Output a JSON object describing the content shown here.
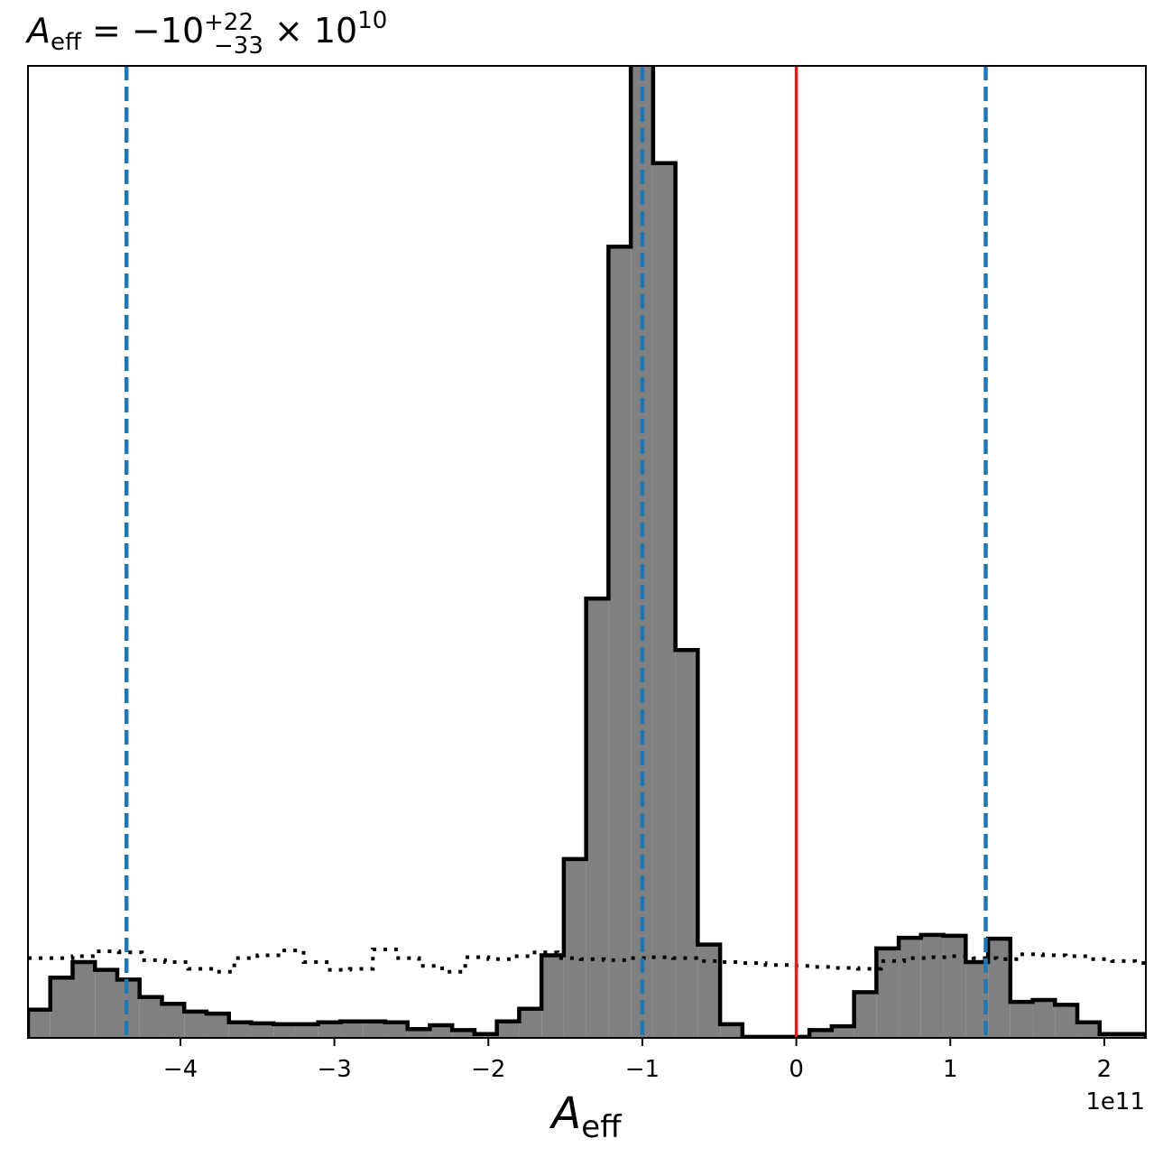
{
  "chart_data": {
    "type": "histogram",
    "title": {
      "symbol": "A",
      "symbol_sub": "eff",
      "equals": " = ",
      "value": "−10",
      "err_plus": "+22",
      "err_minus": "−33",
      "times": " × 10",
      "exponent": "10"
    },
    "xlabel": {
      "symbol": "A",
      "sub": "eff"
    },
    "ylabel": "",
    "offset_text": "1e11",
    "x_scale": 100000000000,
    "xlim": [
      -4.99,
      2.27
    ],
    "ylim": [
      0,
      1.0
    ],
    "x_ticks": [
      -4,
      -3,
      -2,
      -1,
      0,
      1,
      2
    ],
    "x_tick_labels": [
      "−4",
      "−3",
      "−2",
      "−1",
      "0",
      "1",
      "2"
    ],
    "y_ticks_visible": false,
    "grid": false,
    "histogram": {
      "fill_color": "#808080",
      "edge_color": "#000000",
      "bin_edges": [
        -4.99,
        -4.845,
        -4.7,
        -4.555,
        -4.41,
        -4.265,
        -4.12,
        -3.975,
        -3.83,
        -3.685,
        -3.54,
        -3.395,
        -3.25,
        -3.105,
        -2.96,
        -2.815,
        -2.67,
        -2.525,
        -2.38,
        -2.235,
        -2.09,
        -1.945,
        -1.8,
        -1.655,
        -1.51,
        -1.365,
        -1.22,
        -1.075,
        -0.93,
        -0.785,
        -0.64,
        -0.495,
        -0.35,
        -0.205,
        -0.06,
        0.085,
        0.23,
        0.375,
        0.52,
        0.665,
        0.81,
        0.955,
        1.1,
        1.245,
        1.39,
        1.535,
        1.68,
        1.825,
        1.97,
        2.115,
        2.27
      ],
      "counts": [
        0.029,
        0.062,
        0.078,
        0.07,
        0.06,
        0.042,
        0.035,
        0.027,
        0.025,
        0.016,
        0.015,
        0.014,
        0.014,
        0.016,
        0.017,
        0.017,
        0.016,
        0.009,
        0.013,
        0.008,
        0.004,
        0.017,
        0.03,
        0.085,
        0.184,
        0.452,
        0.814,
        1.08,
        0.9,
        0.399,
        0.096,
        0.014,
        0.001,
        0.001,
        0.001,
        0.008,
        0.012,
        0.047,
        0.092,
        0.103,
        0.106,
        0.105,
        0.078,
        0.102,
        0.037,
        0.039,
        0.034,
        0.016,
        0.004,
        0.004
      ]
    },
    "prior_dotted": {
      "color": "#000000",
      "x": [
        -4.99,
        -4.85,
        -4.7,
        -4.55,
        -4.4,
        -4.25,
        -4.1,
        -3.95,
        -3.8,
        -3.65,
        -3.5,
        -3.35,
        -3.2,
        -3.05,
        -2.9,
        -2.75,
        -2.6,
        -2.45,
        -2.3,
        -2.15,
        -2.0,
        -1.85,
        -1.7,
        -1.55,
        -1.4,
        -1.25,
        -1.1,
        -0.95,
        -0.8,
        -0.65,
        -0.5,
        -0.35,
        -0.2,
        -0.05,
        0.1,
        0.25,
        0.4,
        0.55,
        0.7,
        0.85,
        1.0,
        1.15,
        1.3,
        1.45,
        1.6,
        1.75,
        1.9,
        2.05,
        2.2,
        2.27
      ],
      "y": [
        0.082,
        0.082,
        0.084,
        0.089,
        0.088,
        0.08,
        0.078,
        0.071,
        0.068,
        0.082,
        0.085,
        0.09,
        0.078,
        0.07,
        0.071,
        0.091,
        0.082,
        0.074,
        0.068,
        0.083,
        0.081,
        0.084,
        0.088,
        0.082,
        0.081,
        0.08,
        0.082,
        0.083,
        0.082,
        0.079,
        0.078,
        0.077,
        0.075,
        0.074,
        0.073,
        0.072,
        0.071,
        0.079,
        0.082,
        0.083,
        0.084,
        0.082,
        0.081,
        0.086,
        0.085,
        0.084,
        0.081,
        0.079,
        0.077,
        0.076
      ]
    },
    "median_line": {
      "x": -1.0,
      "color": "#1f77b4",
      "style": "dashed"
    },
    "interval_lines": [
      {
        "x": -4.35,
        "color": "#1f77b4",
        "style": "dashed"
      },
      {
        "x": 1.23,
        "color": "#1f77b4",
        "style": "dashed"
      }
    ],
    "truth_line": {
      "x": 0.0,
      "color": "#e41a1c",
      "style": "solid"
    }
  }
}
